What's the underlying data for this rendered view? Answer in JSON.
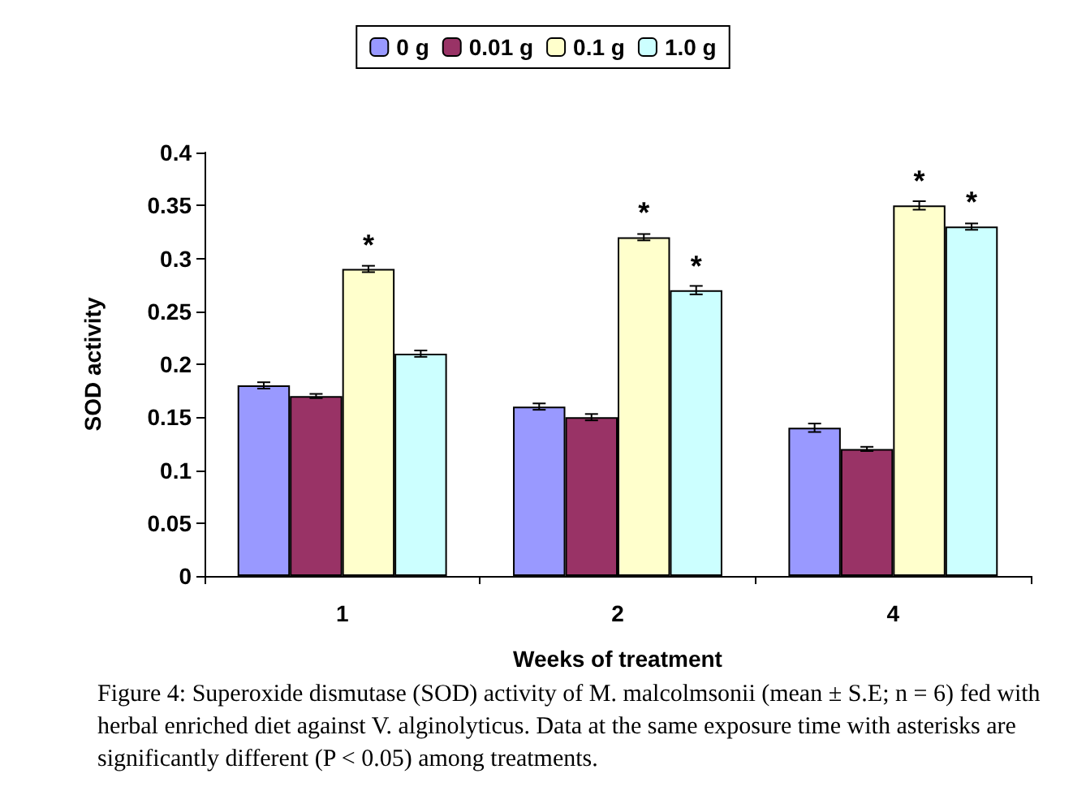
{
  "chart_data": {
    "type": "bar",
    "xlabel": "Weeks of treatment",
    "ylabel": "SOD activity",
    "categories": [
      "1",
      "2",
      "4"
    ],
    "series": [
      {
        "name": "0 g",
        "color": "#9999ff",
        "values": [
          0.18,
          0.16,
          0.14
        ],
        "errors": [
          0.003,
          0.003,
          0.004
        ]
      },
      {
        "name": "0.01 g",
        "color": "#993366",
        "values": [
          0.17,
          0.15,
          0.12
        ],
        "errors": [
          0.002,
          0.003,
          0.002
        ]
      },
      {
        "name": "0.1 g",
        "color": "#ffffcc",
        "values": [
          0.29,
          0.32,
          0.35
        ],
        "errors": [
          0.003,
          0.003,
          0.004
        ]
      },
      {
        "name": "1.0 g",
        "color": "#ccffff",
        "values": [
          0.21,
          0.27,
          0.33
        ],
        "errors": [
          0.003,
          0.004,
          0.003
        ]
      }
    ],
    "ylim": [
      0,
      0.4
    ],
    "yticks": [
      0,
      0.05,
      0.1,
      0.15,
      0.2,
      0.25,
      0.3,
      0.35,
      0.4
    ],
    "grid": false,
    "legend": "top",
    "annotations": [
      {
        "text": "*",
        "x": "1",
        "y": 0.29
      },
      {
        "text": "*",
        "x": "2",
        "y": 0.32
      },
      {
        "text": "*",
        "x": "2",
        "y": 0.27
      },
      {
        "text": "*",
        "x": "4",
        "y": 0.35
      },
      {
        "text": "*",
        "x": "4",
        "y": 0.33
      },
      "Figure 4: Superoxide dismutase (SOD) activity of M. malcolmsonii (mean ± S.E; n = 6) fed with herbal enriched diet against V. alginolyticus. Data at the same exposure time with asterisks are significantly different (P < 0.05) among treatments."
    ]
  }
}
